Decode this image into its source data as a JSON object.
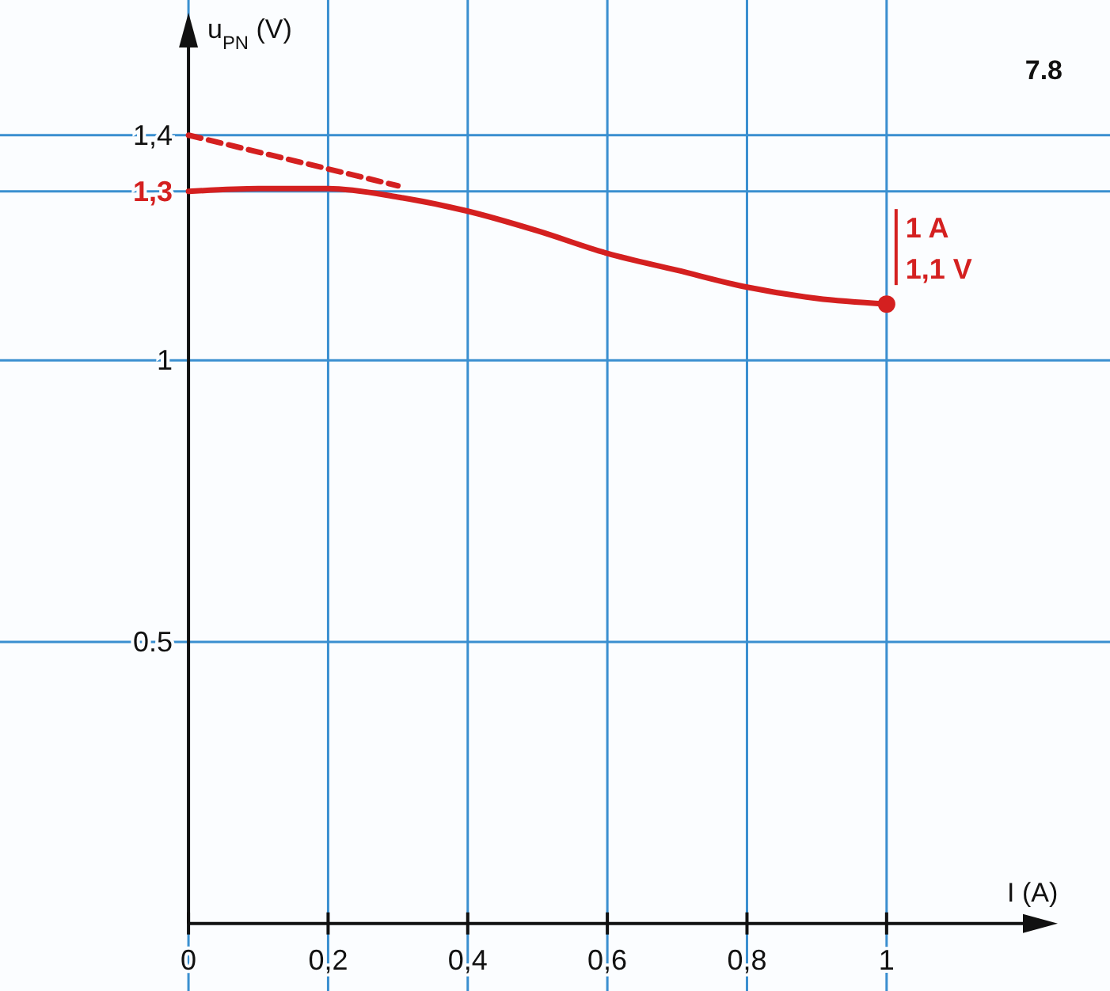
{
  "chart_data": {
    "type": "line",
    "xlabel": "I (A)",
    "ylabel": "u$_{PN}$ (V)",
    "xlim": [
      -0.27,
      1.32
    ],
    "ylim": [
      -0.12,
      1.64
    ],
    "xticks": [
      0,
      {
        "value": 0.2,
        "label": "0,2"
      },
      {
        "value": 0.4,
        "label": "0,4"
      },
      {
        "value": 0.6,
        "label": "0,6"
      },
      {
        "value": 0.8,
        "label": "0,8"
      },
      1
    ],
    "yticks": [
      0.5,
      1,
      {
        "value": 1.3,
        "label": "1,3"
      },
      {
        "value": 1.4,
        "label": "1,4"
      }
    ],
    "grid": true,
    "marker": "none",
    "series": [
      {
        "color": "#d42020",
        "x": [
          0,
          0.1,
          0.2,
          0.3,
          0.4,
          0.5,
          0.6,
          0.7,
          0.8,
          0.9,
          1
        ],
        "values": [
          1.3,
          1.305,
          1.305,
          1.29,
          1.265,
          1.23,
          1.19,
          1.16,
          1.13,
          1.11,
          1.1
        ]
      },
      {
        "color": "#d42020",
        "x": [
          0,
          0.3
        ],
        "values": [
          1.4,
          1.31
        ],
        "line_style": "dashed"
      },
      {
        "type": "scatter",
        "marker": "circle",
        "color": "#d42020",
        "x": [
          1
        ],
        "values": [
          1.1
        ]
      }
    ],
    "annotations": [
      "7.8",
      {
        "text": "1 A",
        "x": 1,
        "y": 1.1
      },
      {
        "text": "1,1 V",
        "x": 1,
        "y": 1.1
      }
    ]
  }
}
